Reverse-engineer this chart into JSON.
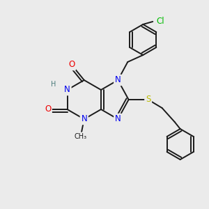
{
  "bg_color": "#ebebeb",
  "bond_color": "#1a1a1a",
  "atom_colors": {
    "N": "#0000ee",
    "O": "#ee0000",
    "S": "#bbbb00",
    "Cl": "#00bb00",
    "H": "#4a7a7a",
    "C": "#1a1a1a"
  },
  "lw": 1.4,
  "font_size": 8.5
}
